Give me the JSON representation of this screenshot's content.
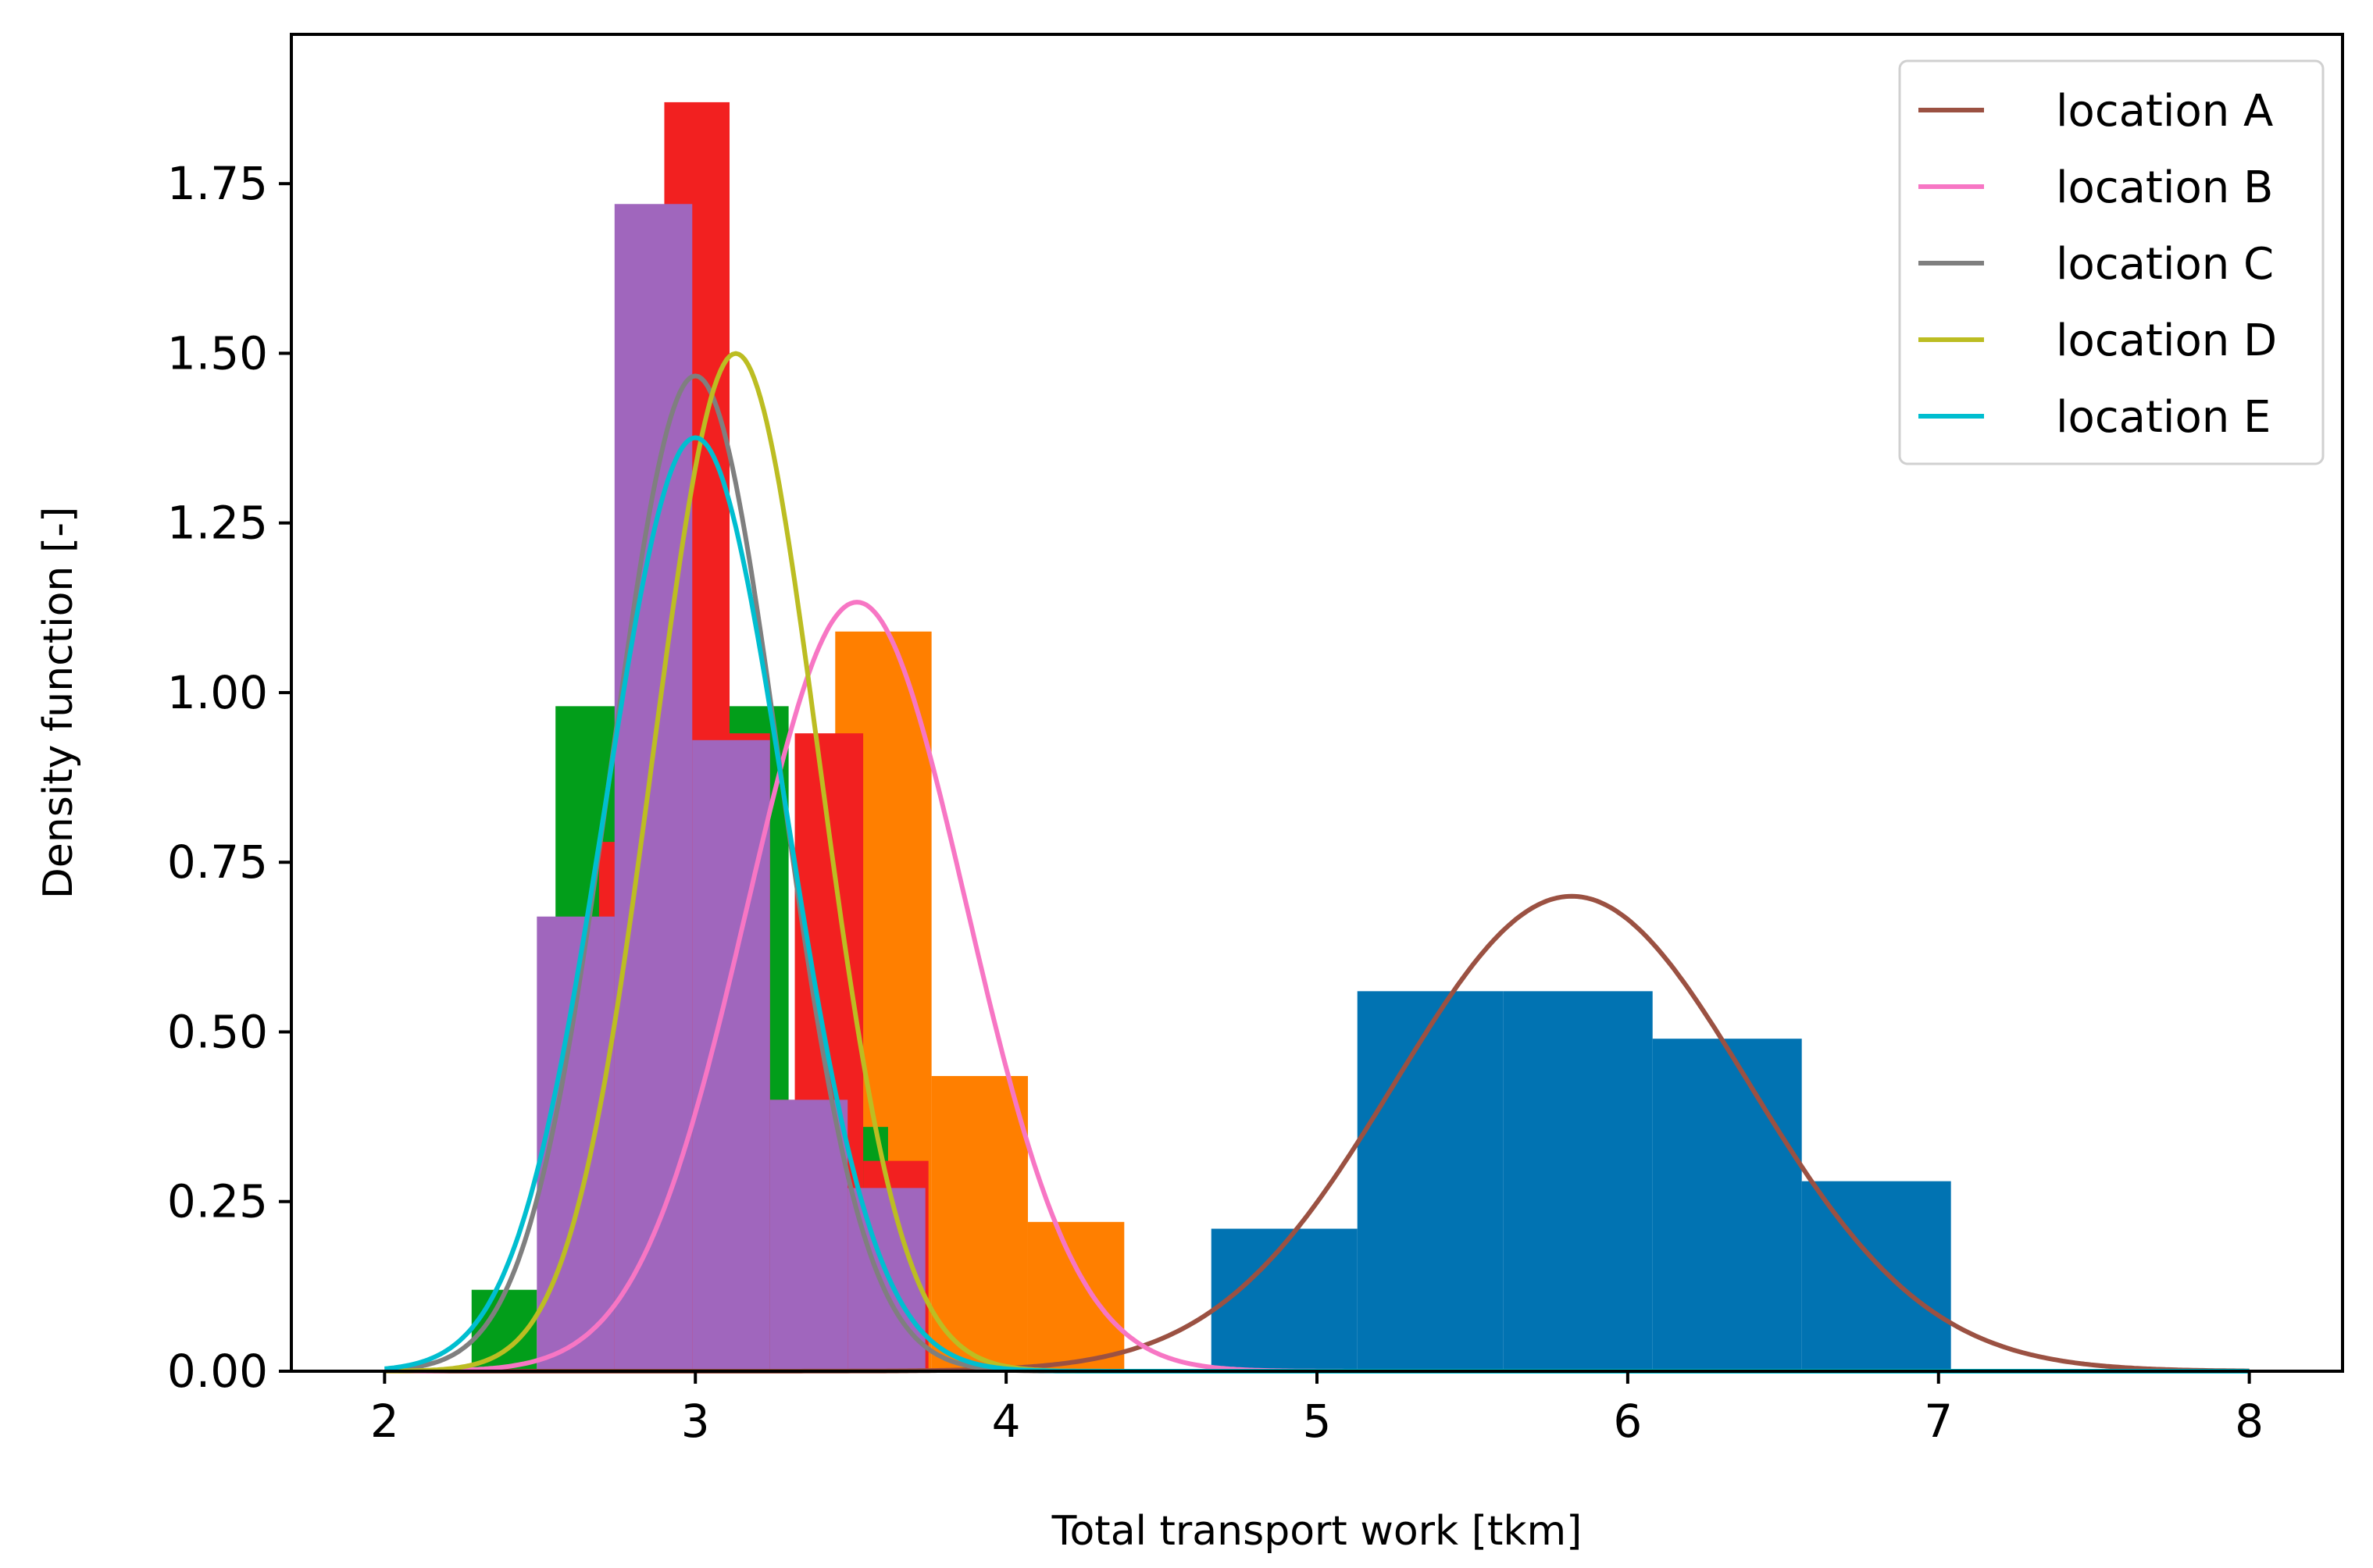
{
  "chart_data": {
    "type": "bar",
    "title": "",
    "xlabel": "Total transport work [tkm]",
    "ylabel": "Density function [-]",
    "xlim": [
      1.7,
      8.3
    ],
    "ylim": [
      0,
      1.97
    ],
    "xticks": [
      {
        "value": 2,
        "label": "2"
      },
      {
        "value": 3,
        "label": "3"
      },
      {
        "value": 4,
        "label": "4"
      },
      {
        "value": 5,
        "label": "5"
      },
      {
        "value": 6,
        "label": "6"
      },
      {
        "value": 7,
        "label": "7"
      },
      {
        "value": 8,
        "label": "8"
      }
    ],
    "yticks": [
      {
        "value": 0,
        "label": "0.00"
      },
      {
        "value": 0.25,
        "label": "0.25"
      },
      {
        "value": 0.5,
        "label": "0.50"
      },
      {
        "value": 0.75,
        "label": "0.75"
      },
      {
        "value": 1.0,
        "label": "1.00"
      },
      {
        "value": 1.25,
        "label": "1.25"
      },
      {
        "value": 1.5,
        "label": "1.50"
      },
      {
        "value": 1.75,
        "label": "1.75"
      }
    ],
    "grid": false,
    "legend_position": "top-right",
    "histograms": [
      {
        "color": "#0173b2",
        "bins": [
          {
            "x0": 4.66,
            "x1": 5.13,
            "y": 0.21
          },
          {
            "x0": 5.13,
            "x1": 5.6,
            "y": 0.56
          },
          {
            "x0": 5.6,
            "x1": 6.08,
            "y": 0.56
          },
          {
            "x0": 6.08,
            "x1": 6.56,
            "y": 0.49
          },
          {
            "x0": 6.56,
            "x1": 7.04,
            "y": 0.28
          }
        ]
      },
      {
        "color": "#ff7f00",
        "bins": [
          {
            "x0": 3.45,
            "x1": 3.76,
            "y": 1.09
          },
          {
            "x0": 3.76,
            "x1": 4.07,
            "y": 0.435
          },
          {
            "x0": 4.07,
            "x1": 4.38,
            "y": 0.22
          }
        ]
      },
      {
        "color": "#029e1a",
        "bins": [
          {
            "x0": 2.28,
            "x1": 2.49,
            "y": 0.12
          },
          {
            "x0": 2.55,
            "x1": 2.75,
            "y": 0.98
          },
          {
            "x0": 3.1,
            "x1": 3.3,
            "y": 0.98
          },
          {
            "x0": 3.3,
            "x1": 3.52,
            "y": 0.36
          },
          {
            "x0": 3.52,
            "x1": 3.62,
            "y": 0.36
          }
        ]
      },
      {
        "color": "#f22020",
        "bins": [
          {
            "x0": 2.69,
            "x1": 2.9,
            "y": 0.78
          },
          {
            "x0": 2.9,
            "x1": 3.11,
            "y": 1.87
          },
          {
            "x0": 3.11,
            "x1": 3.24,
            "y": 0.94
          },
          {
            "x0": 3.24,
            "x1": 3.32,
            "y": 0.4
          },
          {
            "x0": 3.32,
            "x1": 3.54,
            "y": 0.94
          },
          {
            "x0": 3.54,
            "x1": 3.75,
            "y": 0.31
          }
        ]
      },
      {
        "color": "#a066bd",
        "bins": [
          {
            "x0": 2.49,
            "x1": 2.74,
            "y": 0.67
          },
          {
            "x0": 2.74,
            "x1": 2.99,
            "y": 1.72
          },
          {
            "x0": 2.99,
            "x1": 3.24,
            "y": 0.93
          },
          {
            "x0": 3.24,
            "x1": 3.49,
            "y": 0.4
          },
          {
            "x0": 3.49,
            "x1": 3.74,
            "y": 0.27
          }
        ]
      }
    ],
    "series": [
      {
        "name": "location A",
        "color": "#9b5142",
        "mean": 5.82,
        "sd": 0.57
      },
      {
        "name": "location B",
        "color": "#f776c4",
        "mean": 3.52,
        "sd": 0.352
      },
      {
        "name": "location C",
        "color": "#7f7f7f",
        "mean": 3.0,
        "sd": 0.272
      },
      {
        "name": "location D",
        "color": "#bcbd22",
        "mean": 3.13,
        "sd": 0.266
      },
      {
        "name": "location E",
        "color": "#00bed0",
        "mean": 3.0,
        "sd": 0.29
      }
    ]
  }
}
